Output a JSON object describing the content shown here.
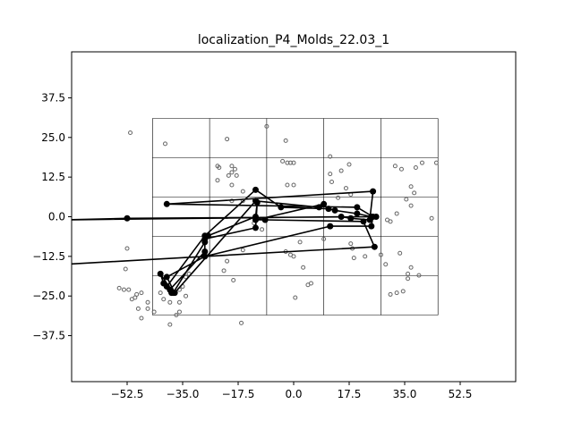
{
  "chart_data": {
    "type": "scatter",
    "title": "localization_P4_Molds_22.03_1",
    "xlabel": "",
    "ylabel": "",
    "xlim": [
      -70,
      70
    ],
    "ylim": [
      -52,
      52
    ],
    "x_ticks": [
      -52.5,
      -35.0,
      -17.5,
      0.0,
      17.5,
      35.0,
      52.5
    ],
    "x_tick_labels": [
      "−52.5",
      "−35.0",
      "−17.5",
      "0.0",
      "17.5",
      "35.0",
      "52.5"
    ],
    "y_ticks": [
      37.5,
      25.0,
      12.5,
      0.0,
      -12.5,
      -25.0,
      -37.5
    ],
    "y_tick_labels": [
      "37.5",
      "25.0",
      "12.5",
      "0.0",
      "−12.5",
      "−25.0",
      "−37.5"
    ],
    "grid": {
      "x_lines": [
        -44.5,
        -26.5,
        -8.5,
        9.5,
        27.5,
        45.5
      ],
      "y_lines": [
        31.0,
        18.6,
        6.2,
        -6.2,
        -18.6,
        -31.0
      ]
    },
    "background_points": [
      [
        -51.5,
        26.5
      ],
      [
        -40.5,
        23
      ],
      [
        -21,
        24.5
      ],
      [
        -8.5,
        28.5
      ],
      [
        -2.5,
        24
      ],
      [
        11.5,
        19
      ],
      [
        17.5,
        16.5
      ],
      [
        15,
        14.5
      ],
      [
        11.5,
        13.5
      ],
      [
        12,
        11
      ],
      [
        16.5,
        9
      ],
      [
        18,
        7
      ],
      [
        14,
        6
      ],
      [
        -24,
        16
      ],
      [
        -23.5,
        15.5
      ],
      [
        -19.5,
        16
      ],
      [
        -19.5,
        14
      ],
      [
        -18.5,
        15
      ],
      [
        -18,
        13
      ],
      [
        -20.5,
        13
      ],
      [
        -24,
        11.5
      ],
      [
        -19.5,
        10
      ],
      [
        -16,
        8
      ],
      [
        -19.5,
        5
      ],
      [
        -16,
        5
      ],
      [
        -3.5,
        17.5
      ],
      [
        -2,
        17
      ],
      [
        -1,
        17
      ],
      [
        0,
        17
      ],
      [
        -2,
        10
      ],
      [
        0,
        10
      ],
      [
        32,
        16
      ],
      [
        34,
        15
      ],
      [
        38.5,
        15.5
      ],
      [
        37,
        9.5
      ],
      [
        38,
        7.5
      ],
      [
        35.5,
        5.5
      ],
      [
        37,
        3.5
      ],
      [
        40.5,
        17
      ],
      [
        45,
        17
      ],
      [
        43.5,
        -0.5
      ],
      [
        32.5,
        1
      ],
      [
        30.5,
        -1.5
      ],
      [
        29.5,
        -1
      ],
      [
        -52.5,
        -10
      ],
      [
        -53,
        -16.5
      ],
      [
        -52,
        -23
      ],
      [
        -51,
        -26
      ],
      [
        -50,
        -25.5
      ],
      [
        -49.5,
        -24.5
      ],
      [
        -49,
        -29
      ],
      [
        -48,
        -32
      ],
      [
        -46,
        -27
      ],
      [
        -46,
        -29
      ],
      [
        -44,
        -30
      ],
      [
        -42,
        -24
      ],
      [
        -41,
        -26
      ],
      [
        -39,
        -27
      ],
      [
        -37,
        -31
      ],
      [
        -36,
        -30
      ],
      [
        -36,
        -27
      ],
      [
        -35,
        -22
      ],
      [
        -34,
        -19
      ],
      [
        -34,
        -25
      ],
      [
        -33,
        -18
      ],
      [
        -36,
        -23
      ],
      [
        -39,
        -34
      ],
      [
        -55,
        -22.5
      ],
      [
        -53.5,
        -23
      ],
      [
        -48,
        -24
      ],
      [
        -22,
        -17
      ],
      [
        -21,
        -14
      ],
      [
        -19,
        -20
      ],
      [
        -16,
        -10.5
      ],
      [
        -12.5,
        -2
      ],
      [
        -10,
        -4
      ],
      [
        -16.5,
        -33.5
      ],
      [
        -2.5,
        -11
      ],
      [
        -1,
        -12
      ],
      [
        0,
        -12.5
      ],
      [
        2,
        -8
      ],
      [
        3,
        -16
      ],
      [
        4.5,
        -21.5
      ],
      [
        5.5,
        -21
      ],
      [
        0.5,
        -25.5
      ],
      [
        9.5,
        -7
      ],
      [
        18,
        -8.5
      ],
      [
        19,
        -13
      ],
      [
        18.5,
        -10
      ],
      [
        22.5,
        -12.5
      ],
      [
        27.5,
        -12
      ],
      [
        29,
        -15
      ],
      [
        32.5,
        -24
      ],
      [
        34.5,
        -23.5
      ],
      [
        36,
        -18
      ],
      [
        37,
        -16
      ],
      [
        39.5,
        -18.5
      ],
      [
        36,
        -19.5
      ],
      [
        30.5,
        -24.5
      ],
      [
        33.5,
        -11.5
      ]
    ],
    "path": [
      [
        -38.5,
        -24
      ],
      [
        -41,
        -21
      ],
      [
        -42,
        -18
      ],
      [
        -38,
        -24
      ],
      [
        -28,
        -8
      ],
      [
        -27,
        -6
      ],
      [
        -12,
        0
      ],
      [
        -11.5,
        4.5
      ],
      [
        -12,
        -3.5
      ],
      [
        -28,
        -7
      ],
      [
        -28,
        -11
      ],
      [
        -39,
        -23
      ],
      [
        -40,
        -22
      ],
      [
        -28,
        -6
      ],
      [
        -12,
        8.5
      ],
      [
        -4,
        3
      ],
      [
        11,
        2.5
      ],
      [
        13,
        2
      ],
      [
        20,
        1
      ],
      [
        24.5,
        0
      ],
      [
        26,
        0
      ],
      [
        -52.5,
        -0.5
      ],
      [
        -72,
        -1
      ],
      [
        15,
        0
      ],
      [
        18,
        -0.5
      ],
      [
        24,
        -1
      ],
      [
        25,
        8
      ],
      [
        -40,
        4
      ],
      [
        20,
        3
      ],
      [
        25,
        0
      ],
      [
        24.5,
        -3
      ],
      [
        11.5,
        -3
      ],
      [
        -28,
        -12.5
      ],
      [
        -40,
        -19
      ],
      [
        -37.5,
        -24
      ],
      [
        -12,
        5
      ],
      [
        8,
        3
      ],
      [
        9.5,
        4
      ],
      [
        -12,
        -1
      ],
      [
        -9,
        -1
      ],
      [
        22,
        -1.5
      ],
      [
        25.5,
        -9.5
      ],
      [
        -72,
        -15
      ]
    ]
  }
}
